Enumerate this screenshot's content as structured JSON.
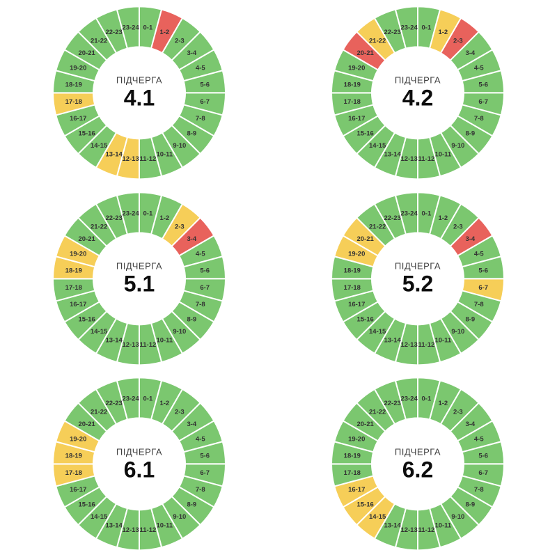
{
  "page": {
    "background": "#ffffff"
  },
  "chart_data": {
    "type": "pie",
    "subtype": "donut-24h-schedule",
    "description_note": "Six 24-segment donut charts, one segment per hour of the day, colored by status",
    "categories": [
      "0-1",
      "1-2",
      "2-3",
      "3-4",
      "4-5",
      "5-6",
      "6-7",
      "7-8",
      "8-9",
      "9-10",
      "10-11",
      "11-12",
      "12-13",
      "13-14",
      "14-15",
      "15-16",
      "16-17",
      "17-18",
      "18-19",
      "19-20",
      "20-21",
      "21-22",
      "22-23",
      "23-24"
    ],
    "center_title": "ПІДЧЕРГА",
    "status_colors": {
      "green": "#7BC76F",
      "yellow": "#F6CE58",
      "red": "#E8625C"
    },
    "segment_gap_color": "#ffffff",
    "label_color": "#333333",
    "charts": [
      {
        "center_value": "4.1",
        "statuses": [
          "green",
          "red",
          "green",
          "green",
          "green",
          "green",
          "green",
          "green",
          "green",
          "green",
          "green",
          "green",
          "yellow",
          "yellow",
          "green",
          "green",
          "green",
          "yellow",
          "green",
          "green",
          "green",
          "green",
          "green",
          "green"
        ]
      },
      {
        "center_value": "4.2",
        "statuses": [
          "green",
          "yellow",
          "red",
          "green",
          "green",
          "green",
          "green",
          "green",
          "green",
          "green",
          "green",
          "green",
          "green",
          "green",
          "green",
          "green",
          "green",
          "green",
          "green",
          "green",
          "red",
          "yellow",
          "green",
          "green"
        ]
      },
      {
        "center_value": "5.1",
        "statuses": [
          "green",
          "green",
          "yellow",
          "red",
          "green",
          "green",
          "green",
          "green",
          "green",
          "green",
          "green",
          "green",
          "green",
          "green",
          "green",
          "green",
          "green",
          "green",
          "yellow",
          "yellow",
          "green",
          "green",
          "green",
          "green"
        ]
      },
      {
        "center_value": "5.2",
        "statuses": [
          "green",
          "green",
          "green",
          "red",
          "green",
          "green",
          "yellow",
          "green",
          "green",
          "green",
          "green",
          "green",
          "green",
          "green",
          "green",
          "green",
          "green",
          "green",
          "green",
          "yellow",
          "yellow",
          "green",
          "green",
          "green"
        ]
      },
      {
        "center_value": "6.1",
        "statuses": [
          "green",
          "green",
          "green",
          "green",
          "green",
          "green",
          "green",
          "green",
          "green",
          "green",
          "green",
          "green",
          "green",
          "green",
          "green",
          "green",
          "green",
          "yellow",
          "yellow",
          "yellow",
          "green",
          "green",
          "green",
          "green"
        ]
      },
      {
        "center_value": "6.2",
        "statuses": [
          "green",
          "green",
          "green",
          "green",
          "green",
          "green",
          "green",
          "green",
          "green",
          "green",
          "green",
          "green",
          "green",
          "green",
          "yellow",
          "yellow",
          "yellow",
          "green",
          "green",
          "green",
          "green",
          "green",
          "green",
          "green"
        ]
      }
    ]
  }
}
